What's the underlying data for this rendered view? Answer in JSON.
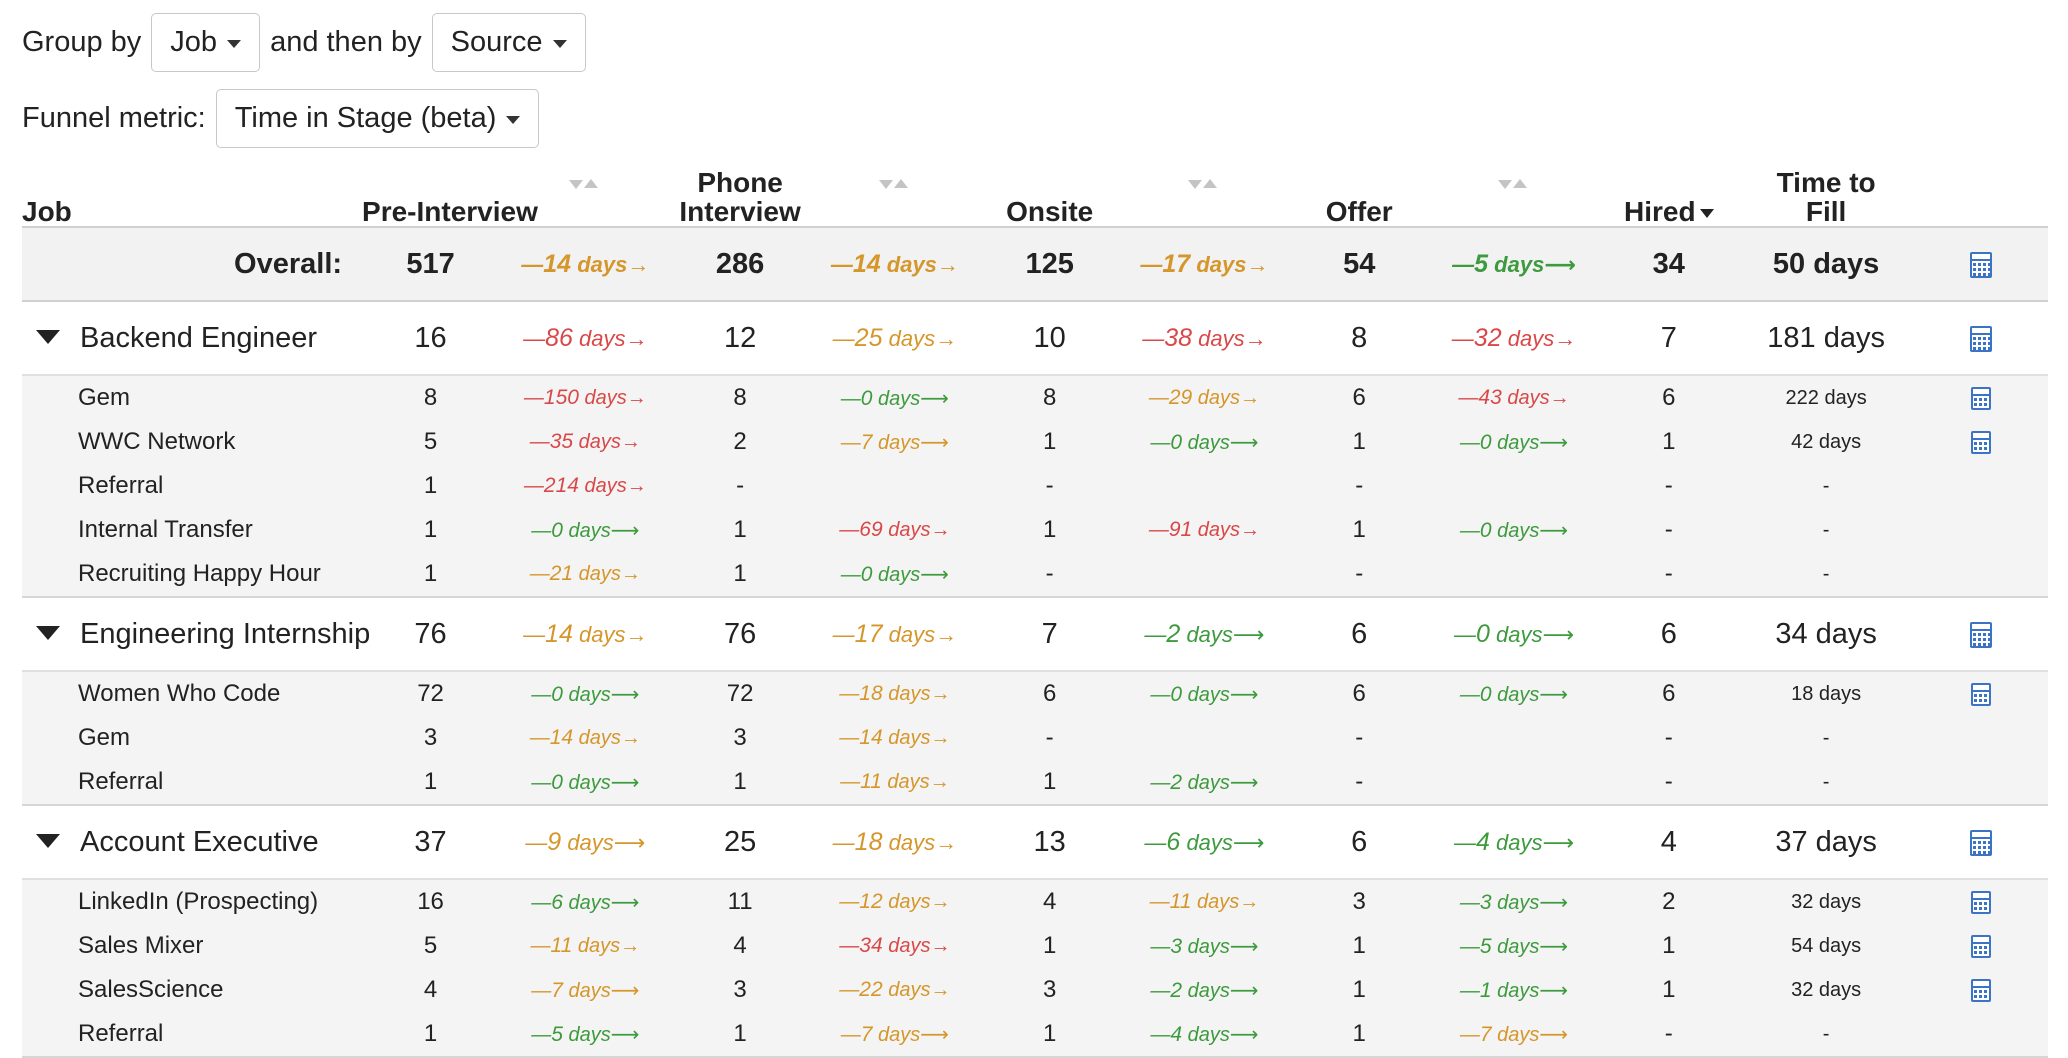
{
  "filters": {
    "group_by_label": "Group by",
    "group_by_value": "Job",
    "then_by_label": "and then by",
    "then_by_value": "Source",
    "metric_label": "Funnel metric:",
    "metric_value": "Time in Stage (beta)"
  },
  "table": {
    "headers": {
      "job": "Job",
      "pre_interview": "Pre-Interview",
      "phone_interview_line1": "Phone",
      "phone_interview_line2": "Interview",
      "onsite": "Onsite",
      "offer": "Offer",
      "hired": "Hired",
      "time_to_fill_line1": "Time to",
      "time_to_fill_line2": "Fill"
    },
    "overall": {
      "label": "Overall:",
      "pre": "517",
      "c1": {
        "dash": "—",
        "val": "14",
        "unit": " days",
        "arrow": "→",
        "color": "orange"
      },
      "phone": "286",
      "c2": {
        "dash": "—",
        "val": "14",
        "unit": " days",
        "arrow": "→",
        "color": "orange"
      },
      "onsite": "125",
      "c3": {
        "dash": "—",
        "val": "17",
        "unit": " days",
        "arrow": "→",
        "color": "orange"
      },
      "offer": "54",
      "c4": {
        "dash": "—",
        "val": "5",
        "unit": " days",
        "arrow": "⟶",
        "color": "green"
      },
      "hired": "34",
      "ttf": "50 days",
      "calc": "calculator-icon"
    },
    "groups": [
      {
        "name": "Backend Engineer",
        "pre": "16",
        "c1": {
          "dash": "—",
          "val": "86",
          "unit": " days",
          "arrow": "→",
          "color": "red"
        },
        "phone": "12",
        "c2": {
          "dash": "—",
          "val": "25",
          "unit": " days",
          "arrow": "→",
          "color": "orange"
        },
        "onsite": "10",
        "c3": {
          "dash": "—",
          "val": "38",
          "unit": " days",
          "arrow": "→",
          "color": "red"
        },
        "offer": "8",
        "c4": {
          "dash": "—",
          "val": "32",
          "unit": " days",
          "arrow": "→",
          "color": "red"
        },
        "hired": "7",
        "ttf": "181 days",
        "calc": "calculator-icon",
        "sources": [
          {
            "name": "Gem",
            "pre": "8",
            "c1": {
              "dash": "—",
              "val": "150",
              "unit": " days",
              "arrow": "→",
              "color": "red"
            },
            "phone": "8",
            "c2": {
              "dash": "—",
              "val": "0",
              "unit": " days",
              "arrow": "⟶",
              "color": "green"
            },
            "onsite": "8",
            "c3": {
              "dash": "—",
              "val": "29",
              "unit": " days",
              "arrow": "→",
              "color": "orange"
            },
            "offer": "6",
            "c4": {
              "dash": "—",
              "val": "43",
              "unit": " days",
              "arrow": "→",
              "color": "red"
            },
            "hired": "6",
            "ttf": "222 days",
            "calc": "calculator-icon"
          },
          {
            "name": "WWC Network",
            "pre": "5",
            "c1": {
              "dash": "—",
              "val": "35",
              "unit": " days",
              "arrow": "→",
              "color": "red"
            },
            "phone": "2",
            "c2": {
              "dash": "—",
              "val": "7",
              "unit": " days",
              "arrow": "⟶",
              "color": "orange"
            },
            "onsite": "1",
            "c3": {
              "dash": "—",
              "val": "0",
              "unit": " days",
              "arrow": "⟶",
              "color": "green"
            },
            "offer": "1",
            "c4": {
              "dash": "—",
              "val": "0",
              "unit": " days",
              "arrow": "⟶",
              "color": "green"
            },
            "hired": "1",
            "ttf": "42 days",
            "calc": "calculator-icon"
          },
          {
            "name": "Referral",
            "pre": "1",
            "c1": {
              "dash": "—",
              "val": "214",
              "unit": " days",
              "arrow": "→",
              "color": "red"
            },
            "phone": "-",
            "c2": null,
            "onsite": "-",
            "c3": null,
            "offer": "-",
            "c4": null,
            "hired": "-",
            "ttf": "-",
            "calc": null
          },
          {
            "name": "Internal Transfer",
            "pre": "1",
            "c1": {
              "dash": "—",
              "val": "0",
              "unit": " days",
              "arrow": "⟶",
              "color": "green"
            },
            "phone": "1",
            "c2": {
              "dash": "—",
              "val": "69",
              "unit": " days",
              "arrow": "→",
              "color": "red"
            },
            "onsite": "1",
            "c3": {
              "dash": "—",
              "val": "91",
              "unit": " days",
              "arrow": "→",
              "color": "red"
            },
            "offer": "1",
            "c4": {
              "dash": "—",
              "val": "0",
              "unit": " days",
              "arrow": "⟶",
              "color": "green"
            },
            "hired": "-",
            "ttf": "-",
            "calc": null
          },
          {
            "name": "Recruiting Happy Hour",
            "pre": "1",
            "c1": {
              "dash": "—",
              "val": "21",
              "unit": " days",
              "arrow": "→",
              "color": "orange"
            },
            "phone": "1",
            "c2": {
              "dash": "—",
              "val": "0",
              "unit": " days",
              "arrow": "⟶",
              "color": "green"
            },
            "onsite": "-",
            "c3": null,
            "offer": "-",
            "c4": null,
            "hired": "-",
            "ttf": "-",
            "calc": null
          }
        ]
      },
      {
        "name": "Engineering Internship",
        "pre": "76",
        "c1": {
          "dash": "—",
          "val": "14",
          "unit": " days",
          "arrow": "→",
          "color": "orange"
        },
        "phone": "76",
        "c2": {
          "dash": "—",
          "val": "17",
          "unit": " days",
          "arrow": "→",
          "color": "orange"
        },
        "onsite": "7",
        "c3": {
          "dash": "—",
          "val": "2",
          "unit": " days",
          "arrow": "⟶",
          "color": "green"
        },
        "offer": "6",
        "c4": {
          "dash": "—",
          "val": "0",
          "unit": " days",
          "arrow": "⟶",
          "color": "green"
        },
        "hired": "6",
        "ttf": "34 days",
        "calc": "calculator-icon",
        "sources": [
          {
            "name": "Women Who Code",
            "pre": "72",
            "c1": {
              "dash": "—",
              "val": "0",
              "unit": " days",
              "arrow": "⟶",
              "color": "green"
            },
            "phone": "72",
            "c2": {
              "dash": "—",
              "val": "18",
              "unit": " days",
              "arrow": "→",
              "color": "orange"
            },
            "onsite": "6",
            "c3": {
              "dash": "—",
              "val": "0",
              "unit": " days",
              "arrow": "⟶",
              "color": "green"
            },
            "offer": "6",
            "c4": {
              "dash": "—",
              "val": "0",
              "unit": " days",
              "arrow": "⟶",
              "color": "green"
            },
            "hired": "6",
            "ttf": "18 days",
            "calc": "calculator-icon"
          },
          {
            "name": "Gem",
            "pre": "3",
            "c1": {
              "dash": "—",
              "val": "14",
              "unit": " days",
              "arrow": "→",
              "color": "orange"
            },
            "phone": "3",
            "c2": {
              "dash": "—",
              "val": "14",
              "unit": " days",
              "arrow": "→",
              "color": "orange"
            },
            "onsite": "-",
            "c3": null,
            "offer": "-",
            "c4": null,
            "hired": "-",
            "ttf": "-",
            "calc": null
          },
          {
            "name": "Referral",
            "pre": "1",
            "c1": {
              "dash": "—",
              "val": "0",
              "unit": " days",
              "arrow": "⟶",
              "color": "green"
            },
            "phone": "1",
            "c2": {
              "dash": "—",
              "val": "11",
              "unit": " days",
              "arrow": "→",
              "color": "orange"
            },
            "onsite": "1",
            "c3": {
              "dash": "—",
              "val": "2",
              "unit": " days",
              "arrow": "⟶",
              "color": "green"
            },
            "offer": "-",
            "c4": null,
            "hired": "-",
            "ttf": "-",
            "calc": null
          }
        ]
      },
      {
        "name": "Account Executive",
        "pre": "37",
        "c1": {
          "dash": "—",
          "val": "9",
          "unit": " days",
          "arrow": "⟶",
          "color": "orange"
        },
        "phone": "25",
        "c2": {
          "dash": "—",
          "val": "18",
          "unit": " days",
          "arrow": "→",
          "color": "orange"
        },
        "onsite": "13",
        "c3": {
          "dash": "—",
          "val": "6",
          "unit": " days",
          "arrow": "⟶",
          "color": "green"
        },
        "offer": "6",
        "c4": {
          "dash": "—",
          "val": "4",
          "unit": " days",
          "arrow": "⟶",
          "color": "green"
        },
        "hired": "4",
        "ttf": "37 days",
        "calc": "calculator-icon",
        "sources": [
          {
            "name": "LinkedIn (Prospecting)",
            "pre": "16",
            "c1": {
              "dash": "—",
              "val": "6",
              "unit": " days",
              "arrow": "⟶",
              "color": "green"
            },
            "phone": "11",
            "c2": {
              "dash": "—",
              "val": "12",
              "unit": " days",
              "arrow": "→",
              "color": "orange"
            },
            "onsite": "4",
            "c3": {
              "dash": "—",
              "val": "11",
              "unit": " days",
              "arrow": "→",
              "color": "orange"
            },
            "offer": "3",
            "c4": {
              "dash": "—",
              "val": "3",
              "unit": " days",
              "arrow": "⟶",
              "color": "green"
            },
            "hired": "2",
            "ttf": "32 days",
            "calc": "calculator-icon"
          },
          {
            "name": "Sales Mixer",
            "pre": "5",
            "c1": {
              "dash": "—",
              "val": "11",
              "unit": " days",
              "arrow": "→",
              "color": "orange"
            },
            "phone": "4",
            "c2": {
              "dash": "—",
              "val": "34",
              "unit": " days",
              "arrow": "→",
              "color": "red"
            },
            "onsite": "1",
            "c3": {
              "dash": "—",
              "val": "3",
              "unit": " days",
              "arrow": "⟶",
              "color": "green"
            },
            "offer": "1",
            "c4": {
              "dash": "—",
              "val": "5",
              "unit": " days",
              "arrow": "⟶",
              "color": "green"
            },
            "hired": "1",
            "ttf": "54 days",
            "calc": "calculator-icon"
          },
          {
            "name": "SalesScience",
            "pre": "4",
            "c1": {
              "dash": "—",
              "val": "7",
              "unit": " days",
              "arrow": "⟶",
              "color": "orange"
            },
            "phone": "3",
            "c2": {
              "dash": "—",
              "val": "22",
              "unit": " days",
              "arrow": "→",
              "color": "orange"
            },
            "onsite": "3",
            "c3": {
              "dash": "—",
              "val": "2",
              "unit": " days",
              "arrow": "⟶",
              "color": "green"
            },
            "offer": "1",
            "c4": {
              "dash": "—",
              "val": "1",
              "unit": " days",
              "arrow": "⟶",
              "color": "green"
            },
            "hired": "1",
            "ttf": "32 days",
            "calc": "calculator-icon"
          },
          {
            "name": "Referral",
            "pre": "1",
            "c1": {
              "dash": "—",
              "val": "5",
              "unit": " days",
              "arrow": "⟶",
              "color": "green"
            },
            "phone": "1",
            "c2": {
              "dash": "—",
              "val": "7",
              "unit": " days",
              "arrow": "⟶",
              "color": "orange"
            },
            "onsite": "1",
            "c3": {
              "dash": "—",
              "val": "4",
              "unit": " days",
              "arrow": "⟶",
              "color": "green"
            },
            "offer": "1",
            "c4": {
              "dash": "—",
              "val": "7",
              "unit": " days",
              "arrow": "⟶",
              "color": "orange"
            },
            "hired": "-",
            "ttf": "-",
            "calc": null
          }
        ]
      }
    ]
  },
  "colors": {
    "orange": "#d5962b",
    "red": "#d94848",
    "green": "#3d9a3d",
    "calculator": "#3b74c4"
  }
}
